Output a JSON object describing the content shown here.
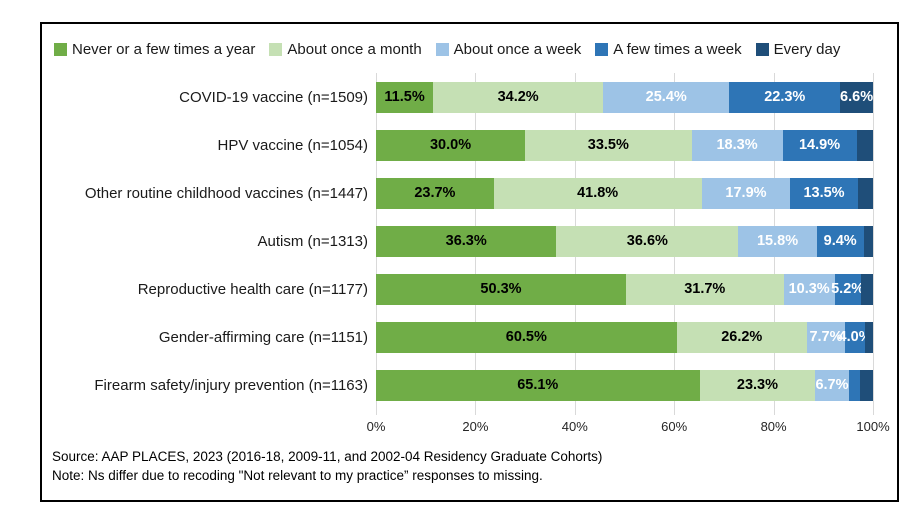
{
  "figure": {
    "source_line": "Source: AAP PLACES, 2023 (2016-18, 2009-11, and 2002-04 Residency Graduate Cohorts)",
    "note_line": "Note: Ns differ due to recoding \"Not relevant to my practice” responses to missing."
  },
  "chart_data": {
    "type": "bar",
    "orientation": "horizontal",
    "stacked": true,
    "unit": "percent",
    "xlim": [
      0,
      100
    ],
    "x_ticks": [
      "0%",
      "20%",
      "40%",
      "60%",
      "80%",
      "100%"
    ],
    "grid": true,
    "gridline_color": "#d9d9d9",
    "legend_position": "top",
    "categories": [
      "COVID-19 vaccine (n=1509)",
      "HPV vaccine (n=1054)",
      "Other routine childhood vaccines (n=1447)",
      "Autism (n=1313)",
      "Reproductive health care (n=1177)",
      "Gender-affirming care (n=1151)",
      "Firearm safety/injury prevention (n=1163)"
    ],
    "series": [
      {
        "name": "Never or a few times a year",
        "color": "#70AD47",
        "label_color": "#000000",
        "values": [
          11.5,
          30.0,
          23.7,
          36.3,
          50.3,
          60.5,
          65.1
        ],
        "labels": [
          "11.5%",
          "30.0%",
          "23.7%",
          "36.3%",
          "50.3%",
          "60.5%",
          "65.1%"
        ]
      },
      {
        "name": "About once a month",
        "color": "#C5E0B4",
        "label_color": "#000000",
        "values": [
          34.2,
          33.5,
          41.8,
          36.6,
          31.7,
          26.2,
          23.3
        ],
        "labels": [
          "34.2%",
          "33.5%",
          "41.8%",
          "36.6%",
          "31.7%",
          "26.2%",
          "23.3%"
        ]
      },
      {
        "name": "About once a week",
        "color": "#9DC3E6",
        "label_color": "#FFFFFF",
        "values": [
          25.4,
          18.3,
          17.9,
          15.8,
          10.3,
          7.7,
          6.7
        ],
        "labels": [
          "25.4%",
          "18.3%",
          "17.9%",
          "15.8%",
          "10.3%",
          "7.7%",
          "6.7%"
        ]
      },
      {
        "name": "A few times a week",
        "color": "#2E75B6",
        "label_color": "#FFFFFF",
        "values": [
          22.3,
          14.9,
          13.5,
          9.4,
          5.2,
          4.0,
          2.3
        ],
        "labels": [
          "22.3%",
          "14.9%",
          "13.5%",
          "9.4%",
          "5.2%",
          "4.0%",
          ""
        ]
      },
      {
        "name": "Every day",
        "color": "#1F4E79",
        "label_color": "#FFFFFF",
        "values": [
          6.6,
          3.3,
          3.1,
          1.9,
          2.5,
          1.6,
          2.6
        ],
        "labels": [
          "6.6%",
          "",
          "",
          "",
          "",
          "",
          ""
        ]
      }
    ]
  }
}
